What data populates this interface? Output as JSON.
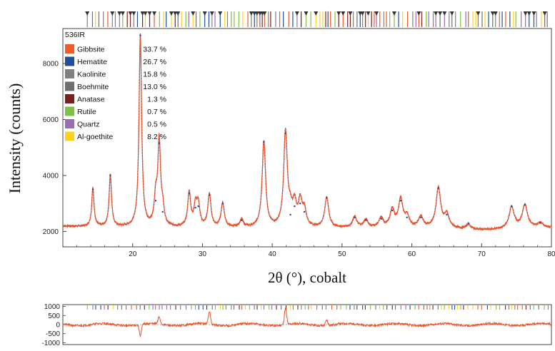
{
  "chart_data": [
    {
      "type": "line",
      "title": "",
      "sample_label": "536IR",
      "xlabel": "2θ (°), cobalt",
      "ylabel": "Intensity (counts)",
      "xlim": [
        10,
        80
      ],
      "ylim": [
        1450,
        9250
      ],
      "x_ticks": [
        20,
        30,
        40,
        50,
        60,
        70,
        80
      ],
      "y_ticks": [
        2000,
        4000,
        6000,
        8000
      ],
      "legend_position": "top-left",
      "background": 2130,
      "series": [
        {
          "name": "observed",
          "color": "#e8532a"
        },
        {
          "name": "calculated",
          "color": "#2d3f95"
        }
      ],
      "peaks": [
        {
          "x": 14.3,
          "y": 3500
        },
        {
          "x": 16.8,
          "y": 4000
        },
        {
          "x": 21.1,
          "y": 9000
        },
        {
          "x": 23.3,
          "y": 3100
        },
        {
          "x": 23.8,
          "y": 5150
        },
        {
          "x": 24.3,
          "y": 2700
        },
        {
          "x": 28.1,
          "y": 3350
        },
        {
          "x": 29.0,
          "y": 2850
        },
        {
          "x": 29.4,
          "y": 2900
        },
        {
          "x": 31.0,
          "y": 3300
        },
        {
          "x": 32.9,
          "y": 3000
        },
        {
          "x": 35.6,
          "y": 2400
        },
        {
          "x": 38.8,
          "y": 5200
        },
        {
          "x": 41.9,
          "y": 5500
        },
        {
          "x": 42.6,
          "y": 2600
        },
        {
          "x": 43.2,
          "y": 2900
        },
        {
          "x": 44.0,
          "y": 3000
        },
        {
          "x": 44.6,
          "y": 2700
        },
        {
          "x": 47.8,
          "y": 3200
        },
        {
          "x": 51.8,
          "y": 2500
        },
        {
          "x": 53.4,
          "y": 2400
        },
        {
          "x": 55.6,
          "y": 2450
        },
        {
          "x": 57.2,
          "y": 2750
        },
        {
          "x": 58.4,
          "y": 3100
        },
        {
          "x": 59.3,
          "y": 2500
        },
        {
          "x": 61.3,
          "y": 2500
        },
        {
          "x": 63.8,
          "y": 3550
        },
        {
          "x": 65.0,
          "y": 2600
        },
        {
          "x": 68.1,
          "y": 2300
        },
        {
          "x": 74.3,
          "y": 2900
        },
        {
          "x": 76.2,
          "y": 2950
        },
        {
          "x": 78.4,
          "y": 2300
        }
      ],
      "legend": [
        {
          "phase": "Gibbsite",
          "percent": "33.7 %",
          "color": "#f05a28"
        },
        {
          "phase": "Hematite",
          "percent": "26.7 %",
          "color": "#1f4e9c"
        },
        {
          "phase": "Kaolinite",
          "percent": "15.8 %",
          "color": "#808080"
        },
        {
          "phase": "Boehmite",
          "percent": "13.0 %",
          "color": "#6d6e71"
        },
        {
          "phase": "Anatase",
          "percent": "1.3 %",
          "color": "#7b1f1a"
        },
        {
          "phase": "Rutile",
          "percent": "0.7 %",
          "color": "#7dc242"
        },
        {
          "phase": "Quartz",
          "percent": "0.5 %",
          "color": "#9b6bb3"
        },
        {
          "phase": "Al-goethite",
          "percent": "8.2 %",
          "color": "#ffd11a"
        }
      ]
    },
    {
      "type": "line",
      "title": "",
      "xlabel": "",
      "ylabel": "",
      "xlim": [
        10,
        80
      ],
      "ylim": [
        -1100,
        1100
      ],
      "y_ticks": [
        1000,
        500,
        0,
        -500,
        -1000
      ],
      "series": [
        {
          "name": "difference",
          "color": "#e8532a"
        }
      ],
      "features": [
        {
          "x": 21.1,
          "y": -600
        },
        {
          "x": 23.8,
          "y": 400
        },
        {
          "x": 31.0,
          "y": 700
        },
        {
          "x": 41.9,
          "y": 900
        },
        {
          "x": 47.8,
          "y": 300
        }
      ]
    }
  ]
}
